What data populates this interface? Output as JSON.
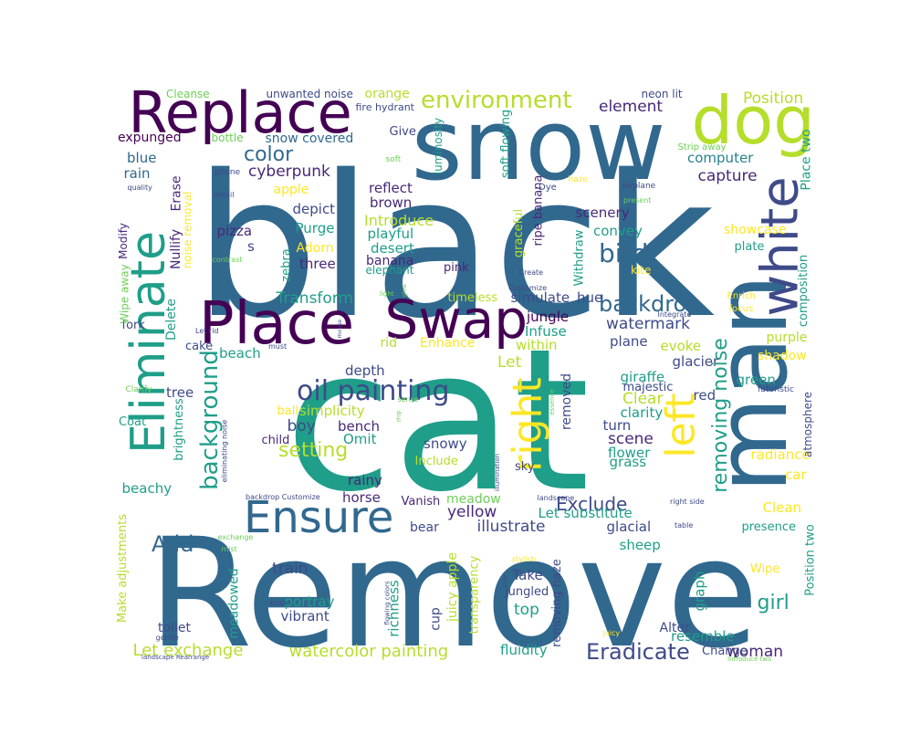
{
  "palette": {
    "dark_purple": "#440154",
    "purple": "#482878",
    "indigo": "#3e4a89",
    "blue": "#31688e",
    "teal_blue": "#26828e",
    "teal": "#1f9e89",
    "green": "#35b779",
    "light_green": "#6ece58",
    "yellow_green": "#b5de2b",
    "yellow": "#fde725"
  },
  "words": [
    {
      "text": "black",
      "color": "blue",
      "rot": 0
    },
    {
      "text": "cat",
      "color": "teal",
      "rot": 0
    },
    {
      "text": "Remove",
      "color": "blue",
      "rot": 0
    },
    {
      "text": "snow",
      "color": "blue",
      "rot": 0
    },
    {
      "text": "Replace",
      "color": "dark_purple",
      "rot": 0
    },
    {
      "text": "dog",
      "color": "yellow_green",
      "rot": 0
    },
    {
      "text": "man",
      "color": "blue",
      "rot": -90
    },
    {
      "text": "white",
      "color": "indigo",
      "rot": -90
    },
    {
      "text": "Place",
      "color": "dark_purple",
      "rot": 0
    },
    {
      "text": "Swap",
      "color": "dark_purple",
      "rot": 0
    },
    {
      "text": "Eliminate",
      "color": "teal",
      "rot": -90
    },
    {
      "text": "Ensure",
      "color": "blue",
      "rot": 0
    },
    {
      "text": "right",
      "color": "yellow",
      "rot": -90
    },
    {
      "text": "left",
      "color": "yellow",
      "rot": -90
    },
    {
      "text": "oil painting",
      "color": "indigo",
      "rot": 0
    },
    {
      "text": "environment",
      "color": "yellow_green",
      "rot": 0
    },
    {
      "text": "backdrop",
      "color": "blue",
      "rot": 0
    },
    {
      "text": "bird",
      "color": "blue",
      "rot": 0
    },
    {
      "text": "color",
      "color": "blue",
      "rot": 0
    },
    {
      "text": "background",
      "color": "teal",
      "rot": -90
    },
    {
      "text": "removing noise",
      "color": "teal",
      "rot": -90
    },
    {
      "text": "Add",
      "color": "blue",
      "rot": 0
    },
    {
      "text": "Eradicate",
      "color": "indigo",
      "rot": 0
    },
    {
      "text": "setting",
      "color": "yellow_green",
      "rot": 0
    },
    {
      "text": "watercolor painting",
      "color": "yellow_green",
      "rot": 0
    },
    {
      "text": "Let exchange",
      "color": "yellow_green",
      "rot": 0
    },
    {
      "text": "Exclude",
      "color": "indigo",
      "rot": 0
    },
    {
      "text": "girl",
      "color": "teal",
      "rot": 0
    },
    {
      "text": "Transform",
      "color": "teal",
      "rot": 0
    },
    {
      "text": "cyberpunk",
      "color": "purple",
      "rot": 0
    },
    {
      "text": "element",
      "color": "purple",
      "rot": 0
    },
    {
      "text": "Position",
      "color": "yellow_green",
      "rot": 0
    },
    {
      "text": "capture",
      "color": "purple",
      "rot": 0
    },
    {
      "text": "illustrate",
      "color": "indigo",
      "rot": 0
    },
    {
      "text": "watermark",
      "color": "indigo",
      "rot": 0
    },
    {
      "text": "scene",
      "color": "purple",
      "rot": 0
    },
    {
      "text": "boy",
      "color": "indigo",
      "rot": 0
    },
    {
      "text": "Clear",
      "color": "yellow_green",
      "rot": 0
    },
    {
      "text": "yellow",
      "color": "purple",
      "rot": 0
    },
    {
      "text": "woman",
      "color": "purple",
      "rot": 0
    },
    {
      "text": "Introduce",
      "color": "yellow_green",
      "rot": 0
    },
    {
      "text": "unwanted noise",
      "color": "indigo",
      "rot": 0
    },
    {
      "text": "orange",
      "color": "yellow_green",
      "rot": 0
    },
    {
      "text": "Cleanse",
      "color": "light_green",
      "rot": 0
    },
    {
      "text": "neon lit",
      "color": "indigo",
      "rot": 0
    },
    {
      "text": "expunged",
      "color": "dark_purple",
      "rot": 0
    },
    {
      "text": "snow covered",
      "color": "blue",
      "rot": 0
    },
    {
      "text": "Give",
      "color": "indigo",
      "rot": 0
    },
    {
      "text": "fire hydrant",
      "color": "indigo",
      "rot": 0
    },
    {
      "text": "bottle",
      "color": "light_green",
      "rot": 0
    },
    {
      "text": "blue",
      "color": "blue",
      "rot": 0
    },
    {
      "text": "rain",
      "color": "blue",
      "rot": 0
    },
    {
      "text": "computer",
      "color": "teal_blue",
      "rot": 0
    },
    {
      "text": "Place two",
      "color": "teal",
      "rot": -90
    },
    {
      "text": "reflect",
      "color": "purple",
      "rot": 0
    },
    {
      "text": "brown",
      "color": "purple",
      "rot": 0
    },
    {
      "text": "apple",
      "color": "yellow",
      "rot": 0
    },
    {
      "text": "depict",
      "color": "indigo",
      "rot": 0
    },
    {
      "text": "scenery",
      "color": "purple",
      "rot": 0
    },
    {
      "text": "convey",
      "color": "teal",
      "rot": 0
    },
    {
      "text": "showcase",
      "color": "yellow",
      "rot": 0
    },
    {
      "text": "Purge",
      "color": "teal",
      "rot": 0
    },
    {
      "text": "playful",
      "color": "teal",
      "rot": 0
    },
    {
      "text": "pizza",
      "color": "purple",
      "rot": 0
    },
    {
      "text": "desert",
      "color": "teal",
      "rot": 0
    },
    {
      "text": "plate",
      "color": "teal",
      "rot": 0
    },
    {
      "text": "Adorn",
      "color": "yellow",
      "rot": 0
    },
    {
      "text": "banana",
      "color": "purple",
      "rot": 0
    },
    {
      "text": "three",
      "color": "purple",
      "rot": 0
    },
    {
      "text": "elephant",
      "color": "teal",
      "rot": 0
    },
    {
      "text": "pink",
      "color": "purple",
      "rot": 0
    },
    {
      "text": "kite",
      "color": "yellow",
      "rot": 0
    },
    {
      "text": "composition",
      "color": "teal",
      "rot": -90
    },
    {
      "text": "timeless",
      "color": "yellow_green",
      "rot": 0
    },
    {
      "text": "simulate",
      "color": "indigo",
      "rot": 0
    },
    {
      "text": "hue",
      "color": "indigo",
      "rot": 0
    },
    {
      "text": "jungle",
      "color": "dark_purple",
      "rot": 0
    },
    {
      "text": "Infuse",
      "color": "teal",
      "rot": 0
    },
    {
      "text": "Enhance",
      "color": "yellow",
      "rot": 0
    },
    {
      "text": "rid",
      "color": "yellow_green",
      "rot": 0
    },
    {
      "text": "plane",
      "color": "indigo",
      "rot": 0
    },
    {
      "text": "evoke",
      "color": "yellow_green",
      "rot": 0
    },
    {
      "text": "purple",
      "color": "yellow_green",
      "rot": 0
    },
    {
      "text": "shadow",
      "color": "yellow",
      "rot": 0
    },
    {
      "text": "glacier",
      "color": "indigo",
      "rot": 0
    },
    {
      "text": "giraffe",
      "color": "teal",
      "rot": 0
    },
    {
      "text": "green",
      "color": "teal",
      "rot": 0
    },
    {
      "text": "majestic",
      "color": "indigo",
      "rot": 0
    },
    {
      "text": "red",
      "color": "indigo",
      "rot": 0
    },
    {
      "text": "depth",
      "color": "indigo",
      "rot": 0
    },
    {
      "text": "tree",
      "color": "indigo",
      "rot": 0
    },
    {
      "text": "beach",
      "color": "teal",
      "rot": 0
    },
    {
      "text": "cake",
      "color": "indigo",
      "rot": 0
    },
    {
      "text": "simplicity",
      "color": "yellow_green",
      "rot": 0
    },
    {
      "text": "clarity",
      "color": "teal",
      "rot": 0
    },
    {
      "text": "turn",
      "color": "indigo",
      "rot": 0
    },
    {
      "text": "Omit",
      "color": "teal",
      "rot": 0
    },
    {
      "text": "bench",
      "color": "purple",
      "rot": 0
    },
    {
      "text": "snowy",
      "color": "indigo",
      "rot": 0
    },
    {
      "text": "flower",
      "color": "teal",
      "rot": 0
    },
    {
      "text": "grass",
      "color": "teal",
      "rot": 0
    },
    {
      "text": "radiance",
      "color": "yellow",
      "rot": 0
    },
    {
      "text": "car",
      "color": "yellow",
      "rot": 0
    },
    {
      "text": "Clean",
      "color": "yellow",
      "rot": 0
    },
    {
      "text": "horse",
      "color": "purple",
      "rot": 0
    },
    {
      "text": "rainy",
      "color": "purple",
      "rot": 0
    },
    {
      "text": "sky",
      "color": "indigo",
      "rot": 0
    },
    {
      "text": "beachy",
      "color": "teal",
      "rot": 0
    },
    {
      "text": "meadow",
      "color": "light_green",
      "rot": 0
    },
    {
      "text": "Vanish",
      "color": "purple",
      "rot": 0
    },
    {
      "text": "bear",
      "color": "indigo",
      "rot": 0
    },
    {
      "text": "Let substitute",
      "color": "teal",
      "rot": 0
    },
    {
      "text": "glacial",
      "color": "indigo",
      "rot": 0
    },
    {
      "text": "presence",
      "color": "teal",
      "rot": 0
    },
    {
      "text": "sheep",
      "color": "teal",
      "rot": 0
    },
    {
      "text": "Wipe",
      "color": "yellow",
      "rot": 0
    },
    {
      "text": "train",
      "color": "indigo",
      "rot": 0
    },
    {
      "text": "Take",
      "color": "indigo",
      "rot": 0
    },
    {
      "text": "jungled",
      "color": "indigo",
      "rot": 0
    },
    {
      "text": "top",
      "color": "teal",
      "rot": 0
    },
    {
      "text": "portray",
      "color": "teal",
      "rot": 0
    },
    {
      "text": "vibrant",
      "color": "indigo",
      "rot": 0
    },
    {
      "text": "toilet",
      "color": "indigo",
      "rot": 0
    },
    {
      "text": "Alter",
      "color": "indigo",
      "rot": 0
    },
    {
      "text": "resemble",
      "color": "teal",
      "rot": 0
    },
    {
      "text": "fluidity",
      "color": "teal",
      "rot": 0
    },
    {
      "text": "Change",
      "color": "indigo",
      "rot": 0
    },
    {
      "text": "ball",
      "color": "yellow",
      "rot": 0
    },
    {
      "text": "child",
      "color": "purple",
      "rot": 0
    },
    {
      "text": "Include",
      "color": "yellow_green",
      "rot": 0
    },
    {
      "text": "Coat",
      "color": "teal",
      "rot": 0
    },
    {
      "text": "fork",
      "color": "indigo",
      "rot": 0
    },
    {
      "text": "Let",
      "color": "yellow_green",
      "rot": 0
    },
    {
      "text": "within",
      "color": "yellow_green",
      "rot": 0
    },
    {
      "text": "s",
      "color": "indigo",
      "rot": 0
    },
    {
      "text": "removed",
      "color": "indigo",
      "rot": -90
    },
    {
      "text": "graph",
      "color": "teal",
      "rot": -90
    },
    {
      "text": "Make adjustments",
      "color": "yellow_green",
      "rot": -90
    },
    {
      "text": "meadowed",
      "color": "teal",
      "rot": -90
    },
    {
      "text": "richness",
      "color": "teal",
      "rot": -90
    },
    {
      "text": "cup",
      "color": "indigo",
      "rot": -90
    },
    {
      "text": "juicy apple",
      "color": "yellow_green",
      "rot": -90
    },
    {
      "text": "transparency",
      "color": "yellow_green",
      "rot": -90
    },
    {
      "text": "removing haze",
      "color": "indigo",
      "rot": -90
    },
    {
      "text": "Position two",
      "color": "teal",
      "rot": -90
    },
    {
      "text": "atmosphere",
      "color": "indigo",
      "rot": -90
    },
    {
      "text": "brightness",
      "color": "teal",
      "rot": -90
    },
    {
      "text": "Delete",
      "color": "teal",
      "rot": -90
    },
    {
      "text": "Nullify",
      "color": "purple",
      "rot": -90
    },
    {
      "text": "Erase",
      "color": "purple",
      "rot": -90
    },
    {
      "text": "Modify",
      "color": "purple",
      "rot": -90
    },
    {
      "text": "Wipe away",
      "color": "light_green",
      "rot": -90
    },
    {
      "text": "zebra",
      "color": "teal",
      "rot": -90
    },
    {
      "text": "noise removal",
      "color": "yellow",
      "rot": -90
    },
    {
      "text": "luminosity",
      "color": "teal",
      "rot": -90
    },
    {
      "text": "soft flowing",
      "color": "teal",
      "rot": -90
    },
    {
      "text": "graceful",
      "color": "yellow_green",
      "rot": -90
    },
    {
      "text": "ripe banana",
      "color": "purple",
      "rot": -90
    },
    {
      "text": "Withdraw",
      "color": "teal",
      "rot": -90
    },
    {
      "text": "Strip away",
      "color": "light_green",
      "rot": 0
    },
    {
      "text": "soft",
      "color": "light_green",
      "rot": 0
    },
    {
      "text": "Dye",
      "color": "indigo",
      "rot": 0
    },
    {
      "text": "haze",
      "color": "yellow",
      "rot": 0
    },
    {
      "text": "airplane",
      "color": "indigo",
      "rot": 0
    },
    {
      "text": "present",
      "color": "light_green",
      "rot": 0
    },
    {
      "text": "phone",
      "color": "indigo",
      "rot": 0
    },
    {
      "text": "quality",
      "color": "indigo",
      "rot": 0
    },
    {
      "text": "detail",
      "color": "indigo",
      "rot": 0
    },
    {
      "text": "contrast",
      "color": "light_green",
      "rot": 0
    },
    {
      "text": "Create",
      "color": "indigo",
      "rot": 0
    },
    {
      "text": "Customize",
      "color": "indigo",
      "rot": 0
    },
    {
      "text": "Integrate",
      "color": "indigo",
      "rot": 0
    },
    {
      "text": "light",
      "color": "light_green",
      "rot": 0
    },
    {
      "text": "Enrich",
      "color": "yellow",
      "rot": 0
    },
    {
      "text": "focus",
      "color": "yellow",
      "rot": 0
    },
    {
      "text": "Let rid",
      "color": "indigo",
      "rot": 0
    },
    {
      "text": "must",
      "color": "indigo",
      "rot": 0
    },
    {
      "text": "futuristic",
      "color": "indigo",
      "rot": 0
    },
    {
      "text": "Clarify",
      "color": "light_green",
      "rot": 0
    },
    {
      "text": "sense",
      "color": "light_green",
      "rot": 0
    },
    {
      "text": "eliminating noise",
      "color": "indigo",
      "rot": -90
    },
    {
      "text": "illumination",
      "color": "indigo",
      "rot": -90
    },
    {
      "text": "essence",
      "color": "light_green",
      "rot": -90
    },
    {
      "text": "backdrop Customize",
      "color": "indigo",
      "rot": 0
    },
    {
      "text": "landscape",
      "color": "indigo",
      "rot": 0
    },
    {
      "text": "right side",
      "color": "indigo",
      "rot": 0
    },
    {
      "text": "table",
      "color": "indigo",
      "rot": 0
    },
    {
      "text": "exchange",
      "color": "light_green",
      "rot": 0
    },
    {
      "text": "mist",
      "color": "light_green",
      "rot": 0
    },
    {
      "text": "stylish",
      "color": "yellow",
      "rot": 0
    },
    {
      "text": "clock",
      "color": "indigo",
      "rot": 0
    },
    {
      "text": "flowing colors",
      "color": "indigo",
      "rot": -90
    },
    {
      "text": "juicy",
      "color": "yellow",
      "rot": 0
    },
    {
      "text": "gentle",
      "color": "indigo",
      "rot": 0
    },
    {
      "text": "landscape Rearrange",
      "color": "indigo",
      "rot": 0
    },
    {
      "text": "Introduce two",
      "color": "light_green",
      "rot": 0
    },
    {
      "text": "glow",
      "color": "light_green",
      "rot": -90
    },
    {
      "text": "mouse",
      "color": "indigo",
      "rot": -90
    },
    {
      "text": "stop",
      "color": "light_green",
      "rot": -90
    },
    {
      "text": "cow",
      "color": "indigo",
      "rot": -90
    }
  ]
}
